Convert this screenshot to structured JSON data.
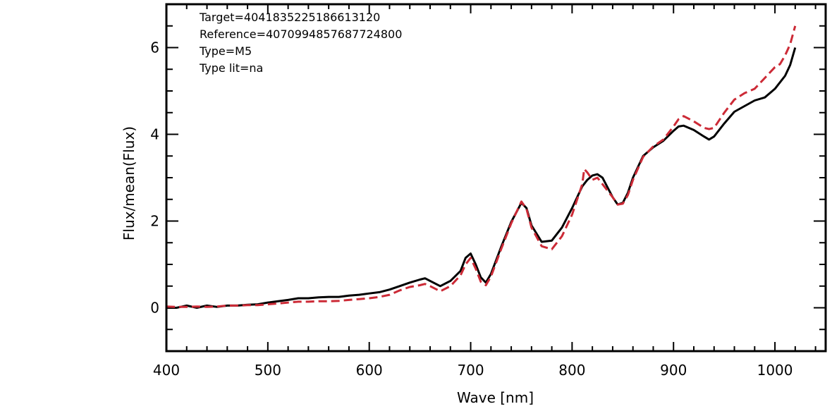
{
  "chart_data": {
    "type": "line",
    "title": "",
    "xlabel": "Wave [nm]",
    "ylabel": "Flux/mean(Flux)",
    "xlim": [
      400,
      1050
    ],
    "ylim": [
      -1,
      7
    ],
    "xticks": [
      400,
      500,
      600,
      700,
      800,
      900,
      1000
    ],
    "yticks": [
      0,
      2,
      4,
      6
    ],
    "grid": false,
    "legend": "none",
    "annotations": [
      "Target=4041835225186613120",
      "Reference=4070994857687724800",
      "Type=M5",
      "Type lit=na"
    ],
    "series": [
      {
        "color": "#000000",
        "style": "solid",
        "x": [
          400,
          410,
          420,
          430,
          440,
          450,
          460,
          470,
          480,
          490,
          500,
          510,
          520,
          530,
          540,
          550,
          560,
          570,
          580,
          590,
          600,
          610,
          620,
          630,
          640,
          650,
          655,
          660,
          670,
          680,
          690,
          695,
          700,
          705,
          710,
          715,
          720,
          730,
          740,
          750,
          755,
          760,
          770,
          780,
          790,
          800,
          810,
          815,
          820,
          825,
          830,
          840,
          845,
          850,
          855,
          860,
          870,
          880,
          890,
          900,
          905,
          910,
          920,
          930,
          935,
          940,
          950,
          960,
          970,
          980,
          990,
          1000,
          1005,
          1010,
          1015,
          1020
        ],
        "y": [
          0.0,
          0.0,
          0.05,
          0.0,
          0.05,
          0.02,
          0.05,
          0.05,
          0.07,
          0.08,
          0.12,
          0.15,
          0.18,
          0.22,
          0.22,
          0.24,
          0.25,
          0.25,
          0.28,
          0.3,
          0.33,
          0.36,
          0.42,
          0.5,
          0.58,
          0.65,
          0.68,
          0.62,
          0.5,
          0.62,
          0.85,
          1.15,
          1.25,
          1.0,
          0.7,
          0.58,
          0.78,
          1.4,
          1.98,
          2.42,
          2.3,
          1.9,
          1.52,
          1.55,
          1.85,
          2.3,
          2.8,
          2.95,
          3.05,
          3.08,
          3.0,
          2.55,
          2.38,
          2.42,
          2.65,
          3.0,
          3.5,
          3.7,
          3.85,
          4.08,
          4.18,
          4.2,
          4.1,
          3.95,
          3.88,
          3.95,
          4.25,
          4.52,
          4.65,
          4.78,
          4.85,
          5.05,
          5.2,
          5.35,
          5.6,
          6.0
        ]
      },
      {
        "color": "#cc2a36",
        "style": "dashed",
        "x": [
          400,
          410,
          420,
          430,
          440,
          450,
          460,
          470,
          480,
          490,
          500,
          510,
          520,
          530,
          540,
          550,
          560,
          570,
          580,
          590,
          600,
          610,
          620,
          630,
          640,
          650,
          655,
          660,
          670,
          680,
          690,
          695,
          700,
          705,
          710,
          715,
          720,
          730,
          740,
          750,
          755,
          760,
          770,
          780,
          790,
          800,
          810,
          812,
          815,
          820,
          825,
          830,
          840,
          845,
          850,
          855,
          860,
          870,
          880,
          890,
          900,
          905,
          910,
          920,
          930,
          935,
          940,
          950,
          960,
          970,
          975,
          980,
          990,
          1000,
          1005,
          1010,
          1015,
          1020
        ],
        "y": [
          0.03,
          0.02,
          0.02,
          0.03,
          0.02,
          0.03,
          0.05,
          0.05,
          0.06,
          0.06,
          0.08,
          0.1,
          0.12,
          0.14,
          0.14,
          0.15,
          0.15,
          0.16,
          0.18,
          0.2,
          0.22,
          0.25,
          0.3,
          0.4,
          0.48,
          0.52,
          0.55,
          0.5,
          0.38,
          0.5,
          0.75,
          1.0,
          1.15,
          0.9,
          0.6,
          0.52,
          0.72,
          1.35,
          1.95,
          2.45,
          2.28,
          1.85,
          1.42,
          1.35,
          1.65,
          2.15,
          2.85,
          3.2,
          3.12,
          2.95,
          3.0,
          2.85,
          2.55,
          2.38,
          2.4,
          2.6,
          2.95,
          3.48,
          3.72,
          3.88,
          4.18,
          4.35,
          4.42,
          4.3,
          4.15,
          4.12,
          4.15,
          4.5,
          4.8,
          4.95,
          5.0,
          5.05,
          5.3,
          5.55,
          5.62,
          5.82,
          6.08,
          6.5
        ]
      }
    ]
  }
}
